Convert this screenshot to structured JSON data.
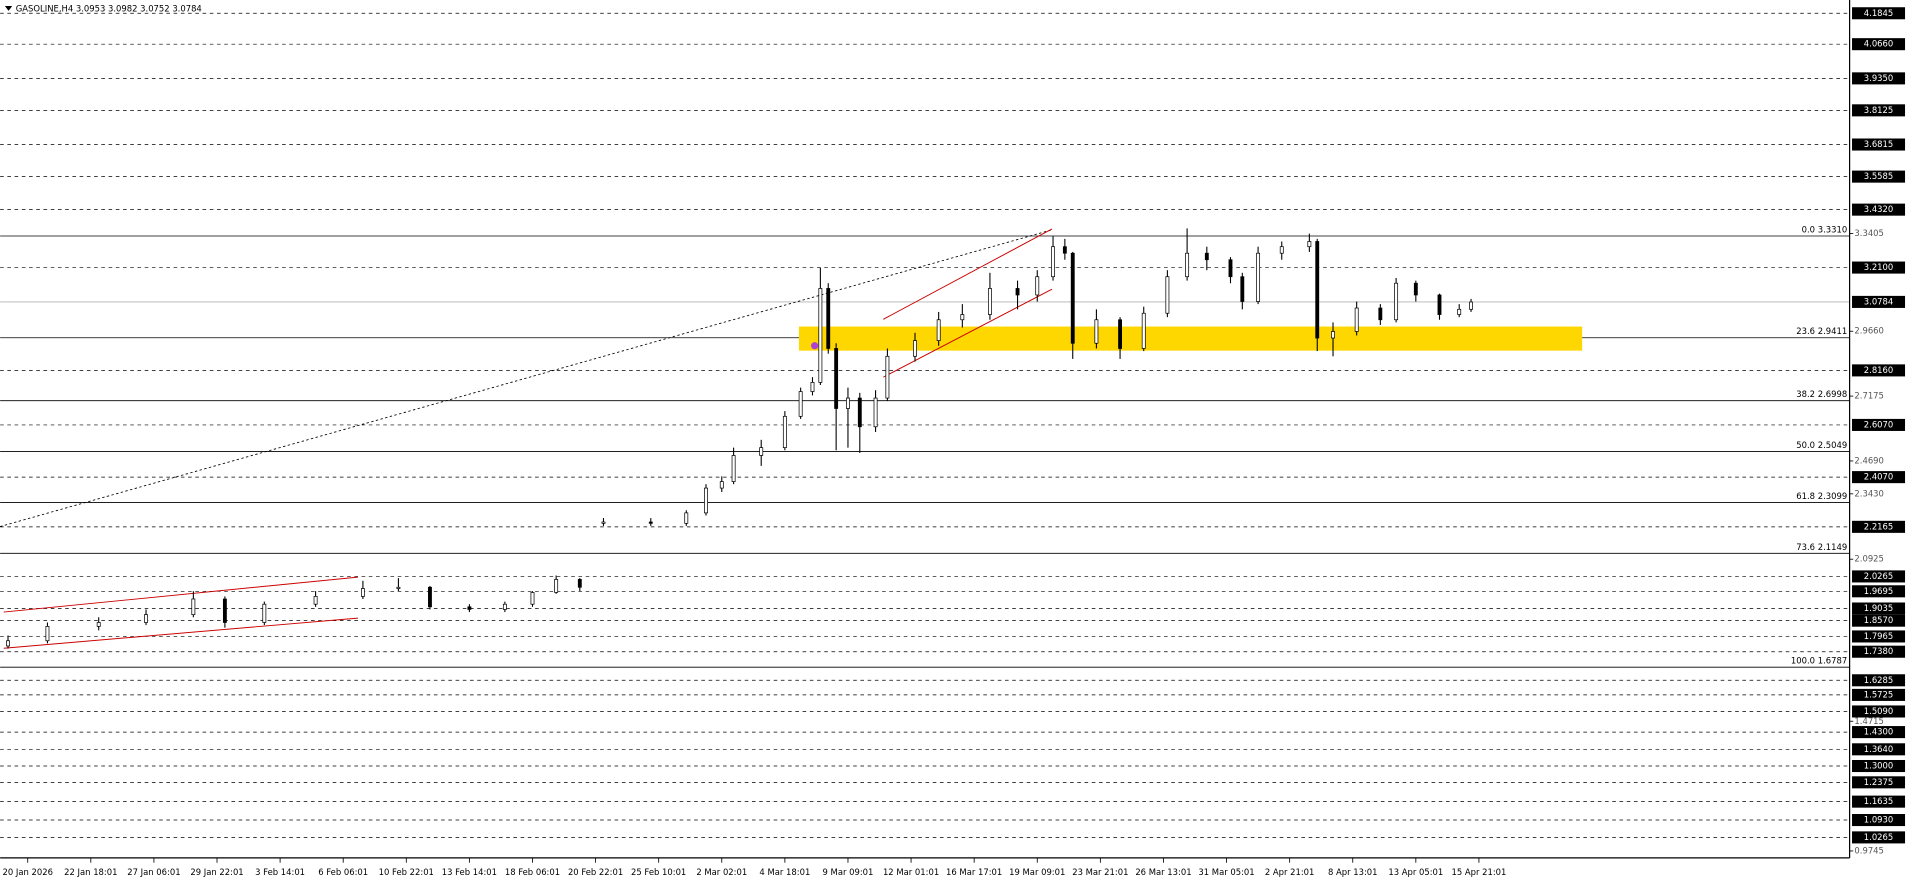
{
  "chart_data": {
    "type": "candlestick",
    "title": "GASOLINE,H4  3.0953 3.0982 3.0752 3.0784",
    "xlim": [
      -2,
      467
    ],
    "ylim": [
      0.948,
      4.2353
    ],
    "xticks": [
      {
        "value": 5,
        "label": "20 Jan 2026"
      },
      {
        "value": 21,
        "label": "22 Jan 18:01"
      },
      {
        "value": 37,
        "label": "27 Jan 06:01"
      },
      {
        "value": 53,
        "label": "29 Jan 22:01"
      },
      {
        "value": 69,
        "label": "3 Feb 14:01"
      },
      {
        "value": 85,
        "label": "6 Feb 06:01"
      },
      {
        "value": 101,
        "label": "10 Feb 22:01"
      },
      {
        "value": 117,
        "label": "13 Feb 14:01"
      },
      {
        "value": 133,
        "label": "18 Feb 06:01"
      },
      {
        "value": 149,
        "label": "20 Feb 22:01"
      },
      {
        "value": 165,
        "label": "25 Feb 10:01"
      },
      {
        "value": 181,
        "label": "2 Mar 02:01"
      },
      {
        "value": 197,
        "label": "4 Mar 18:01"
      },
      {
        "value": 213,
        "label": "9 Mar 09:01"
      },
      {
        "value": 229,
        "label": "12 Mar 01:01"
      },
      {
        "value": 245,
        "label": "16 Mar 17:01"
      },
      {
        "value": 261,
        "label": "19 Mar 09:01"
      },
      {
        "value": 277,
        "label": "23 Mar 21:01"
      },
      {
        "value": 293,
        "label": "26 Mar 13:01"
      },
      {
        "value": 309,
        "label": "31 Mar 05:01"
      },
      {
        "value": 325,
        "label": "2 Apr 21:01"
      },
      {
        "value": 341,
        "label": "8 Apr 13:01"
      },
      {
        "value": 357,
        "label": "13 Apr 05:01"
      },
      {
        "value": 373,
        "label": "15 Apr 21:01"
      }
    ],
    "yticks": [
      3.3405,
      {
        "value": 2.966,
        "label": "2.9660"
      },
      2.7175,
      {
        "value": 2.469,
        "label": "2.4690"
      },
      {
        "value": 2.343,
        "label": "2.3430"
      },
      2.0925,
      1.4715,
      0.9745
    ],
    "levels": [
      {
        "value": 4.1845,
        "label": "4.1845"
      },
      {
        "value": 4.066,
        "label": "4.0660"
      },
      {
        "value": 3.935,
        "label": "3.9350"
      },
      {
        "value": 3.8125,
        "label": "3.8125"
      },
      {
        "value": 3.6815,
        "label": "3.6815"
      },
      {
        "value": 3.5585,
        "label": "3.5585"
      },
      {
        "value": 3.432,
        "label": "3.4320"
      },
      {
        "value": 3.21,
        "label": "3.2100"
      },
      {
        "value": 2.816,
        "label": "2.8160"
      },
      {
        "value": 2.607,
        "label": "2.6070"
      },
      {
        "value": 2.407,
        "label": "2.4070"
      },
      {
        "value": 2.2165,
        "label": "2.2165"
      },
      {
        "value": 2.0265,
        "label": "2.0265"
      },
      {
        "value": 1.9695,
        "label": "1.9695"
      },
      {
        "value": 1.9035,
        "label": "1.9035"
      },
      {
        "value": 1.857,
        "label": "1.8570"
      },
      {
        "value": 1.7965,
        "label": "1.7965"
      },
      {
        "value": 1.738,
        "label": "1.7380"
      },
      {
        "value": 1.6285,
        "label": "1.6285"
      },
      {
        "value": 1.5725,
        "label": "1.5725"
      },
      {
        "value": 1.509,
        "label": "1.5090"
      },
      {
        "value": 1.43,
        "label": "1.4300"
      },
      {
        "value": 1.364,
        "label": "1.3640"
      },
      {
        "value": 1.3,
        "label": "1.3000"
      },
      {
        "value": 1.2375,
        "label": "1.2375"
      },
      {
        "value": 1.1635,
        "label": "1.1635"
      },
      {
        "value": 1.093,
        "label": "1.0930"
      },
      {
        "value": 1.0265,
        "label": "1.0265"
      }
    ],
    "fib_levels": [
      {
        "value": 3.331,
        "label": "0.0 3.3310"
      },
      {
        "value": 2.9411,
        "label": "23.6 2.9411"
      },
      {
        "value": 2.6998,
        "label": "38.2 2.6998"
      },
      {
        "value": 2.5049,
        "label": "50.0 2.5049"
      },
      {
        "value": 2.3099,
        "label": "61.8 2.3099"
      },
      {
        "value": 2.1149,
        "label": "73.6 2.1149"
      },
      {
        "value": 1.6787,
        "label": "100.0 1.6787"
      }
    ],
    "current_price": 3.0784,
    "color": "#000000",
    "ohlc": {
      "x": [
        0,
        10,
        23,
        35,
        47,
        55,
        65,
        78,
        90,
        99,
        107,
        117,
        126,
        133,
        139,
        145,
        151,
        163,
        172,
        177,
        181,
        184,
        191,
        197,
        201,
        204,
        206,
        208,
        210,
        213,
        216,
        220,
        223,
        230,
        236,
        242,
        249,
        256,
        261,
        265,
        268,
        270,
        276,
        282,
        288,
        294,
        299,
        304,
        310,
        313,
        317,
        323,
        330,
        332,
        336,
        342,
        348,
        352,
        357,
        363,
        368,
        371
      ],
      "open": [
        1.76,
        1.78,
        1.835,
        1.85,
        1.88,
        1.94,
        1.85,
        1.92,
        1.95,
        1.98,
        1.985,
        1.91,
        1.9,
        1.92,
        1.965,
        2.015,
        2.23,
        2.235,
        2.23,
        2.27,
        2.365,
        2.39,
        2.49,
        2.52,
        2.64,
        2.735,
        2.77,
        3.13,
        2.9,
        2.67,
        2.71,
        2.6,
        2.71,
        2.87,
        2.93,
        3.01,
        3.03,
        3.13,
        3.105,
        3.175,
        3.29,
        3.265,
        2.92,
        3.01,
        2.9,
        3.035,
        3.175,
        3.265,
        3.24,
        3.175,
        3.08,
        3.265,
        3.29,
        3.31,
        2.94,
        2.965,
        3.055,
        3.01,
        3.15,
        3.105,
        3.03,
        3.05
      ],
      "high": [
        1.8,
        1.85,
        1.87,
        1.9,
        1.97,
        1.95,
        1.93,
        1.97,
        2.01,
        2.02,
        1.99,
        1.92,
        1.93,
        1.97,
        2.03,
        2.02,
        2.25,
        2.25,
        2.28,
        2.38,
        2.41,
        2.52,
        2.55,
        2.66,
        2.75,
        2.79,
        3.21,
        3.15,
        2.92,
        2.75,
        2.73,
        2.74,
        2.9,
        2.96,
        3.04,
        3.07,
        3.19,
        3.16,
        3.2,
        3.33,
        3.32,
        3.27,
        3.05,
        3.02,
        3.06,
        3.2,
        3.36,
        3.29,
        3.25,
        3.19,
        3.29,
        3.31,
        3.34,
        3.32,
        3.0,
        3.08,
        3.07,
        3.17,
        3.16,
        3.11,
        3.07,
        3.09
      ],
      "low": [
        1.75,
        1.77,
        1.82,
        1.84,
        1.87,
        1.83,
        1.84,
        1.91,
        1.94,
        1.97,
        1.9,
        1.89,
        1.89,
        1.91,
        1.96,
        1.97,
        2.22,
        2.22,
        2.22,
        2.26,
        2.35,
        2.38,
        2.45,
        2.51,
        2.63,
        2.72,
        2.76,
        2.88,
        2.51,
        2.52,
        2.5,
        2.58,
        2.7,
        2.85,
        2.91,
        2.98,
        3.01,
        3.05,
        3.08,
        3.16,
        3.24,
        2.86,
        2.9,
        2.86,
        2.89,
        3.02,
        3.16,
        3.2,
        3.15,
        3.05,
        3.07,
        3.24,
        3.27,
        2.89,
        2.87,
        2.95,
        2.99,
        3.0,
        3.08,
        3.01,
        3.02,
        3.04
      ],
      "close": [
        1.78,
        1.835,
        1.85,
        1.88,
        1.94,
        1.85,
        1.92,
        1.95,
        1.98,
        1.985,
        1.91,
        1.9,
        1.92,
        1.965,
        2.015,
        1.985,
        2.235,
        2.23,
        2.27,
        2.365,
        2.39,
        2.49,
        2.52,
        2.64,
        2.735,
        2.77,
        3.13,
        2.9,
        2.67,
        2.71,
        2.6,
        2.71,
        2.87,
        2.93,
        3.01,
        3.03,
        3.13,
        3.105,
        3.175,
        3.29,
        3.265,
        2.92,
        3.01,
        2.9,
        3.035,
        3.175,
        3.265,
        3.24,
        3.175,
        3.08,
        3.265,
        3.29,
        3.31,
        2.94,
        2.965,
        3.055,
        3.01,
        3.15,
        3.105,
        3.03,
        3.05,
        3.078
      ]
    }
  }
}
